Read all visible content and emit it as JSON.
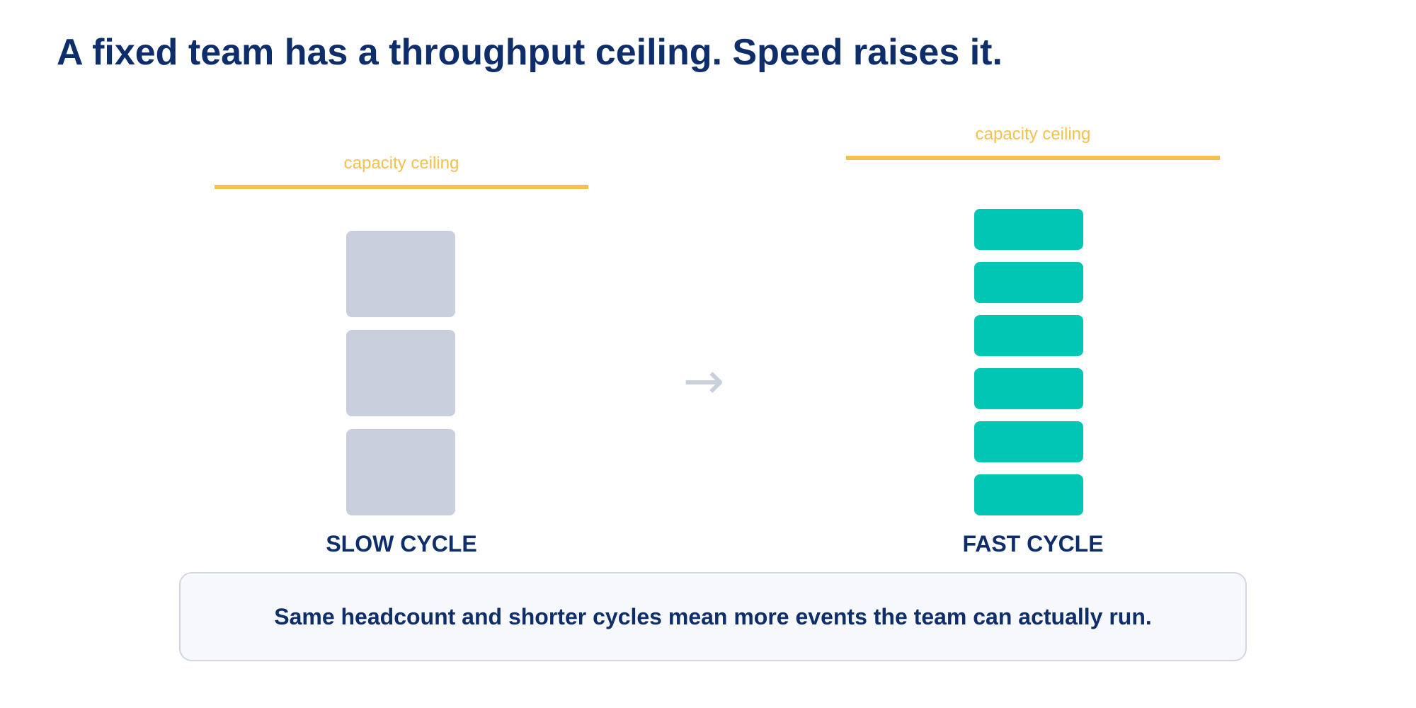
{
  "title": "A fixed team has a throughput ceiling. Speed raises it.",
  "colors": {
    "title": "#0e2d6b",
    "ceiling": "#f2c14e",
    "slow_block": "#c9cfdd",
    "fast_block": "#00c6b3",
    "arrow": "#c9cfdd",
    "callout_border": "#d3d7e2",
    "callout_bg": "#f6f8fc"
  },
  "slow_cycle": {
    "ceiling_label": "capacity ceiling",
    "block_count": 3,
    "label": "SLOW CYCLE"
  },
  "arrow": {
    "glyph": "→",
    "icon": "right-arrow-icon"
  },
  "fast_cycle": {
    "ceiling_label": "capacity ceiling",
    "block_count": 6,
    "label": "FAST CYCLE"
  },
  "callout": {
    "text": "Same headcount and shorter cycles mean more events the team can actually run."
  }
}
